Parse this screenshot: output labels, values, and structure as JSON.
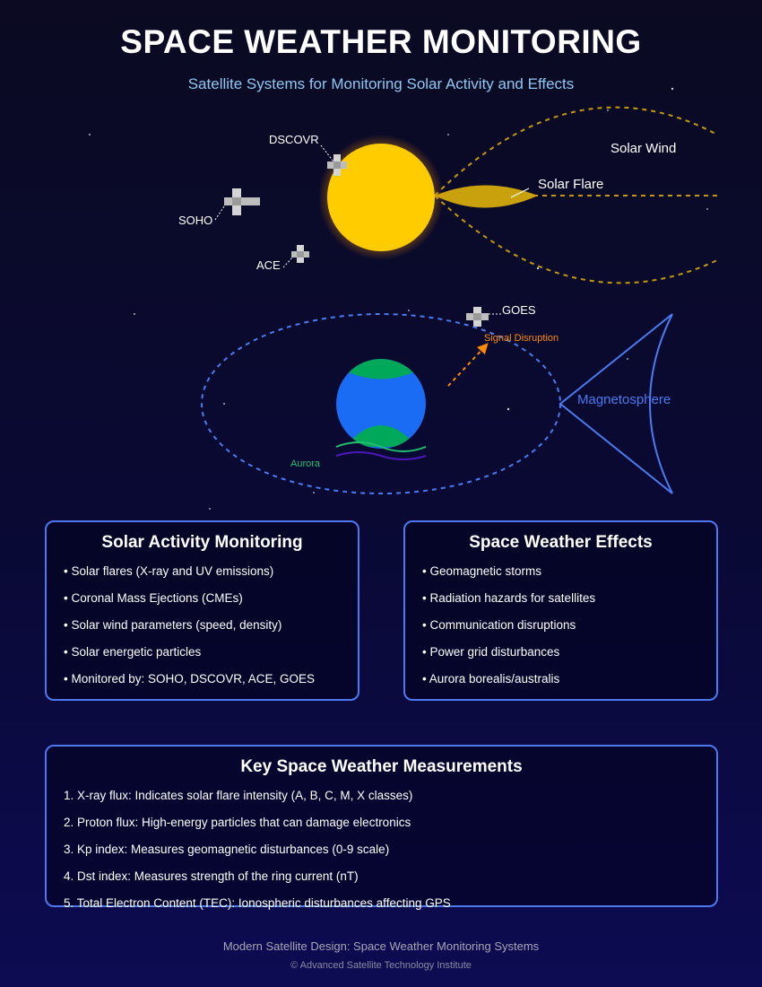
{
  "header": {
    "title": "SPACE WEATHER MONITORING",
    "subtitle": "Satellite Systems for Monitoring Solar Activity and Effects"
  },
  "diagram": {
    "labels": {
      "dscovr": "DSCOVR",
      "soho": "SOHO",
      "ace": "ACE",
      "goes": "GOES",
      "solar_wind": "Solar Wind",
      "solar_flare": "Solar Flare",
      "signal_disruption": "Signal Disruption",
      "magnetosphere": "Magnetosphere",
      "aurora": "Aurora"
    },
    "colors": {
      "sun": "#ffcc00",
      "earth_ocean": "#1a6cf5",
      "earth_land": "#00a85a",
      "magnetosphere": "#4a7bf0",
      "solar_wind": "#c09a0a",
      "signal_disruption": "#ff8c00",
      "aurora_green": "#20c070",
      "aurora_purple": "#4b18b8"
    }
  },
  "panels": {
    "solar_activity": {
      "title": "Solar Activity Monitoring",
      "items": [
        "• Solar flares (X-ray and UV emissions)",
        "• Coronal Mass Ejections (CMEs)",
        "• Solar wind parameters (speed, density)",
        "• Solar energetic particles",
        "• Monitored by: SOHO, DSCOVR, ACE, GOES"
      ]
    },
    "effects": {
      "title": "Space Weather Effects",
      "items": [
        "• Geomagnetic storms",
        "• Radiation hazards for satellites",
        "• Communication disruptions",
        "• Power grid disturbances",
        "• Aurora borealis/australis"
      ]
    },
    "measurements": {
      "title": "Key Space Weather Measurements",
      "items": [
        "1. X-ray flux: Indicates solar flare intensity (A, B, C, M, X classes)",
        "2. Proton flux: High-energy particles that can damage electronics",
        "3. Kp index: Measures geomagnetic disturbances (0-9 scale)",
        "4. Dst index: Measures strength of the ring current (nT)",
        "5. Total Electron Content (TEC): Ionospheric disturbances affecting GPS"
      ]
    }
  },
  "footer": {
    "line1": "Modern Satellite Design: Space Weather Monitoring Systems",
    "line2": "© Advanced Satellite Technology Institute"
  }
}
